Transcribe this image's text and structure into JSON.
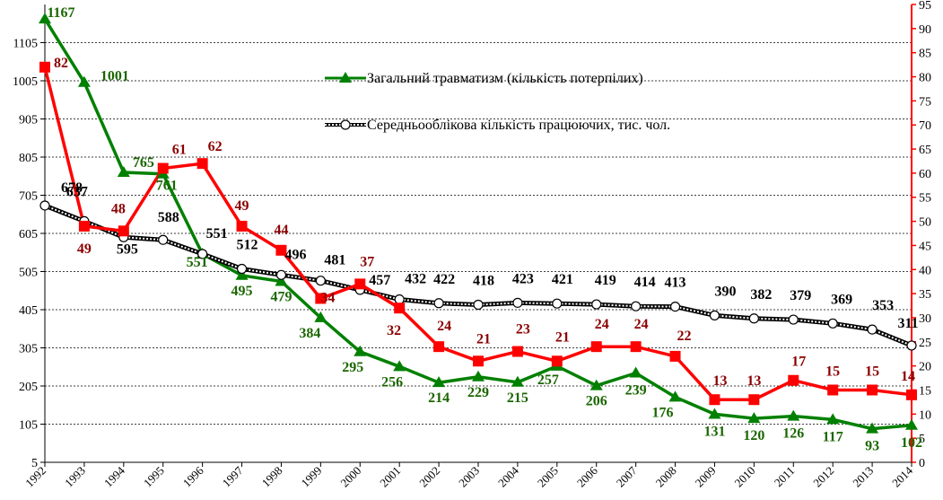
{
  "chart_data": {
    "type": "line",
    "title": "",
    "xlabel": "",
    "ylabel": "",
    "x": [
      "1992",
      "1993",
      "1994",
      "1995",
      "1996",
      "1997",
      "1998",
      "1999",
      "2000",
      "2001",
      "2002",
      "2003",
      "2004",
      "2005",
      "2006",
      "2007",
      "2008",
      "2009",
      "2010",
      "2011",
      "2012",
      "2013",
      "2014"
    ],
    "y_left": {
      "min": 5,
      "max": 1205,
      "ticks": [
        5,
        105,
        205,
        305,
        405,
        505,
        605,
        705,
        805,
        905,
        1005,
        1105
      ]
    },
    "y_right": {
      "min": 0,
      "max": 95,
      "ticks": [
        0,
        5,
        10,
        15,
        20,
        25,
        30,
        35,
        40,
        45,
        50,
        55,
        60,
        65,
        70,
        75,
        80,
        85,
        90,
        95
      ],
      "color": "#ff0000"
    },
    "grid": "horizontal-dashed",
    "series": [
      {
        "name": "Загальний травматизм (кількість потерпілих)",
        "axis": "left",
        "color": "#008000",
        "label_color": "#1a6600",
        "marker": "triangle",
        "in_legend": true,
        "values": [
          1167,
          1001,
          765,
          761,
          551,
          495,
          479,
          384,
          295,
          256,
          214,
          229,
          215,
          257,
          206,
          239,
          176,
          131,
          120,
          126,
          117,
          93,
          102
        ]
      },
      {
        "name": "Середньооблікова кількість працюючих, тис. чол.",
        "axis": "left",
        "color": "#000000",
        "label_color": "#000000",
        "marker": "circle",
        "in_legend": true,
        "values": [
          678,
          637,
          595,
          588,
          551,
          512,
          496,
          481,
          457,
          432,
          422,
          418,
          423,
          421,
          419,
          414,
          413,
          390,
          382,
          379,
          369,
          353,
          311
        ]
      },
      {
        "name": "",
        "axis": "right",
        "color": "#ff0000",
        "label_color": "#8b0000",
        "marker": "square",
        "in_legend": false,
        "values": [
          82,
          49,
          48,
          61,
          62,
          49,
          44,
          34,
          37,
          32,
          24,
          21,
          23,
          21,
          24,
          24,
          22,
          13,
          13,
          17,
          15,
          15,
          14
        ]
      }
    ]
  }
}
